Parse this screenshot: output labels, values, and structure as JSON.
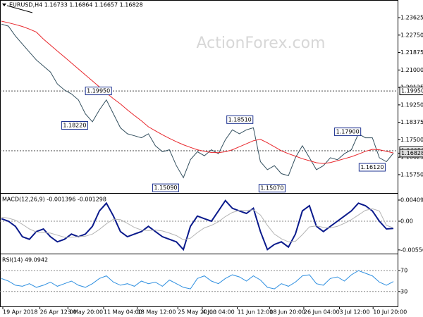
{
  "chart_data": [
    {
      "type": "line",
      "title": "EURUSD,H4 1.16733 1.16864 1.16657 1.16828",
      "watermark": "ActionForex.com",
      "xlim": [
        0,
        56
      ],
      "ylim": [
        1.149,
        1.2451
      ],
      "yticks": [
        {
          "value": 1.23625,
          "label": "1.23625"
        },
        {
          "value": 1.2275,
          "label": "1.22750"
        },
        {
          "value": 1.21875,
          "label": "1.21875"
        },
        {
          "value": 1.21,
          "label": "1.21000"
        },
        {
          "value": 1.20125,
          "label": "1.20125"
        },
        {
          "value": 1.1925,
          "label": "1.19250"
        },
        {
          "value": 1.18375,
          "label": "1.18375"
        },
        {
          "value": 1.175,
          "label": "1.17500"
        },
        {
          "value": 1.16625,
          "label": "1.16625"
        },
        {
          "value": 1.1575,
          "label": "1.15750"
        }
      ],
      "series": [
        {
          "name": "Close",
          "color": "#34505f",
          "values": [
            1.233,
            1.232,
            1.227,
            1.223,
            1.219,
            1.215,
            1.212,
            1.209,
            1.203,
            1.2,
            1.198,
            1.195,
            1.188,
            1.184,
            1.19,
            1.195,
            1.188,
            1.181,
            1.178,
            1.177,
            1.176,
            1.178,
            1.172,
            1.169,
            1.17,
            1.162,
            1.156,
            1.165,
            1.169,
            1.167,
            1.17,
            1.168,
            1.175,
            1.18,
            1.178,
            1.18,
            1.181,
            1.164,
            1.16,
            1.162,
            1.158,
            1.157,
            1.166,
            1.172,
            1.166,
            1.16,
            1.162,
            1.166,
            1.165,
            1.168,
            1.17,
            1.178,
            1.176,
            1.176,
            1.166,
            1.164,
            1.16828
          ]
        },
        {
          "name": "MA",
          "color": "#e8262b",
          "values": [
            1.2345,
            1.2337,
            1.2328,
            1.2318,
            1.2305,
            1.229,
            1.2255,
            1.2225,
            1.2195,
            1.2165,
            1.2135,
            1.2105,
            1.2075,
            1.2045,
            1.2015,
            1.1985,
            1.1956,
            1.193,
            1.19,
            1.1872,
            1.1845,
            1.1815,
            1.1795,
            1.1775,
            1.1757,
            1.174,
            1.1725,
            1.1712,
            1.17,
            1.1692,
            1.1686,
            1.1685,
            1.169,
            1.17,
            1.1715,
            1.173,
            1.1745,
            1.1752,
            1.1735,
            1.1715,
            1.1695,
            1.168,
            1.1668,
            1.1655,
            1.1645,
            1.1635,
            1.1631,
            1.1636,
            1.1645,
            1.1655,
            1.1665,
            1.1678,
            1.1692,
            1.1702,
            1.17,
            1.1692,
            1.1684
          ]
        }
      ],
      "annotations": [
        {
          "label": "1.19950",
          "value": 1.1995,
          "x": 12.2
        },
        {
          "label": "1.18220",
          "value": 1.1822,
          "x": 8.8
        },
        {
          "label": "1.15090",
          "value": 1.1509,
          "x": 21.8
        },
        {
          "label": "1.18510",
          "value": 1.1851,
          "x": 32.4
        },
        {
          "label": "1.15070",
          "value": 1.1507,
          "x": 37
        },
        {
          "label": "1.17900",
          "value": 1.179,
          "x": 47.8
        },
        {
          "label": "1.16120",
          "value": 1.1612,
          "x": 51.3
        }
      ],
      "levels": [
        {
          "value": 1.1995,
          "label": "1.19950"
        },
        {
          "value": 1.1695,
          "label": "1.16950"
        }
      ],
      "last_price": {
        "value": 1.16828,
        "label": "1.16828"
      }
    },
    {
      "type": "line",
      "title": "MACD(12,26,9) -0.001396 -0.001298",
      "xlim": [
        0,
        56
      ],
      "ylim": [
        -0.006,
        0.00505
      ],
      "yticks": [
        0.004094,
        {
          "value": 0,
          "label": "0.00"
        },
        -0.005568
      ],
      "reference_lines": [
        0
      ],
      "series": [
        {
          "name": "MACD",
          "color": "#0a1a8c",
          "values": [
            0.0005,
            0.0,
            -0.001,
            -0.003,
            -0.0035,
            -0.002,
            -0.0015,
            -0.003,
            -0.004,
            -0.0035,
            -0.0025,
            -0.003,
            -0.0025,
            -0.001,
            0.002,
            0.0035,
            0.001,
            -0.002,
            -0.003,
            -0.0025,
            -0.002,
            -0.001,
            -0.002,
            -0.003,
            -0.0035,
            -0.004,
            -0.0055,
            -0.001,
            0.001,
            0.0005,
            0.0,
            0.002,
            0.004,
            0.0025,
            0.002,
            0.0015,
            0.0025,
            -0.002,
            -0.0055,
            -0.0045,
            -0.004,
            -0.005,
            -0.0025,
            0.002,
            0.003,
            -0.001,
            -0.002,
            -0.001,
            0.0,
            0.001,
            0.002,
            0.0035,
            0.003,
            0.002,
            0.0,
            -0.0015,
            -0.0014
          ]
        },
        {
          "name": "Signal",
          "color": "#b5b5b5",
          "values": [
            0.0008,
            0.0006,
            0.0002,
            -0.0006,
            -0.0015,
            -0.0021,
            -0.0022,
            -0.0023,
            -0.0027,
            -0.0031,
            -0.0031,
            -0.003,
            -0.0029,
            -0.0025,
            -0.0016,
            -0.0005,
            0.0004,
            0.0003,
            -0.0004,
            -0.0012,
            -0.0017,
            -0.0018,
            -0.0017,
            -0.0019,
            -0.0023,
            -0.0028,
            -0.0036,
            -0.0033,
            -0.0022,
            -0.0013,
            -0.0008,
            -0.0001,
            0.0009,
            0.0017,
            0.0021,
            0.0021,
            0.0022,
            0.0012,
            -0.0008,
            -0.0025,
            -0.0034,
            -0.004,
            -0.0039,
            -0.0026,
            -0.0011,
            -0.0009,
            -0.0012,
            -0.0013,
            -0.001,
            -0.0004,
            0.0003,
            0.0012,
            0.0021,
            0.0024,
            0.002,
            -0.0008,
            -0.0013
          ]
        }
      ]
    },
    {
      "type": "line",
      "title": "RSI(14) 49.0942",
      "xlim": [
        0,
        56
      ],
      "ylim": [
        0,
        100
      ],
      "yticks": [
        70,
        30
      ],
      "grid": true,
      "xticks": [
        {
          "value": 0.2,
          "label": "19 Apr 2018"
        },
        {
          "value": 5.5,
          "label": "26 Apr 12:00"
        },
        {
          "value": 9.5,
          "label": "3 May 20:00"
        },
        {
          "value": 14.6,
          "label": "11 May 04:00"
        },
        {
          "value": 19.4,
          "label": "18 May 12:00"
        },
        {
          "value": 25.2,
          "label": "25 May 20:00"
        },
        {
          "value": 28.7,
          "label": "4 Jun 04:00"
        },
        {
          "value": 33.7,
          "label": "11 Jun 12:00"
        },
        {
          "value": 38.3,
          "label": "18 Jun 20:00"
        },
        {
          "value": 43.2,
          "label": "26 Jun 04:00"
        },
        {
          "value": 48.3,
          "label": "3 Jul 12:00"
        },
        {
          "value": 53.1,
          "label": "10 Jul 20:00"
        }
      ],
      "series": [
        {
          "name": "RSI",
          "color": "#2e8fe0",
          "values": [
            55,
            50,
            42,
            40,
            45,
            38,
            42,
            48,
            40,
            45,
            50,
            42,
            38,
            45,
            55,
            60,
            48,
            42,
            45,
            40,
            50,
            45,
            48,
            40,
            52,
            45,
            38,
            35,
            55,
            60,
            50,
            45,
            55,
            62,
            58,
            50,
            60,
            52,
            38,
            35,
            45,
            40,
            48,
            60,
            62,
            45,
            42,
            55,
            58,
            50,
            62,
            70,
            65,
            60,
            48,
            42,
            49
          ]
        }
      ]
    }
  ]
}
